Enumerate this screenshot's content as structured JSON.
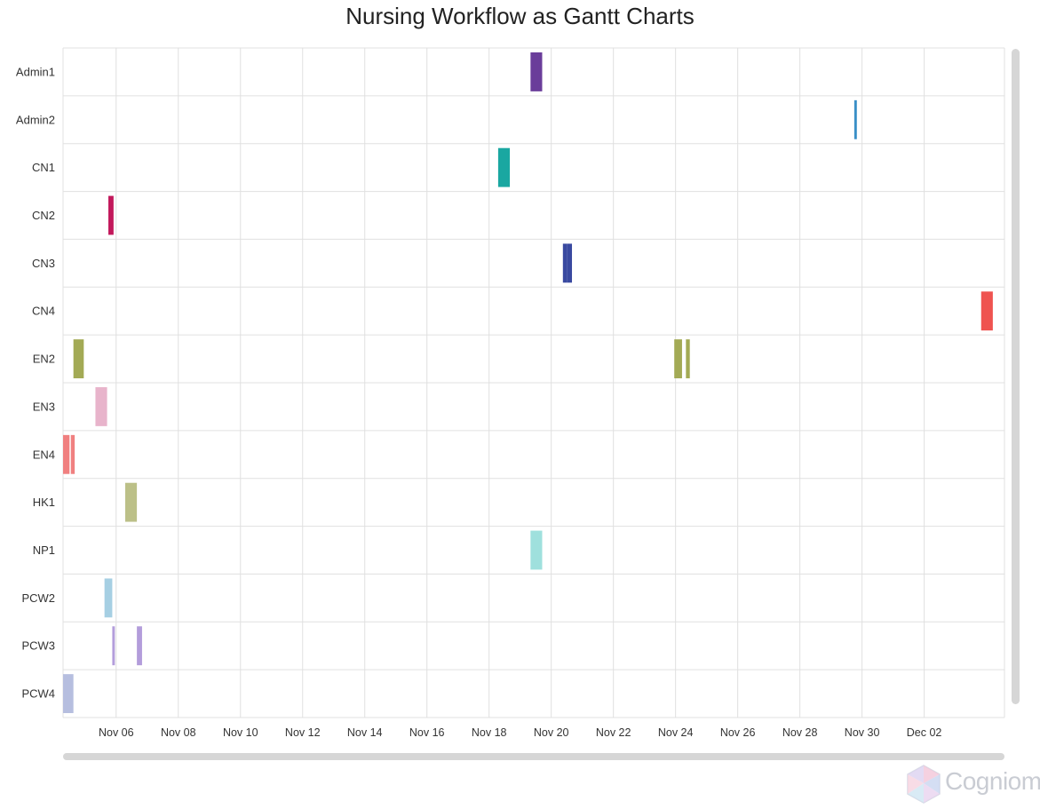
{
  "chart_data": {
    "type": "gantt",
    "title": "Nursing Workflow as Gantt Charts",
    "xlim": [
      "2025-11-04T07:00",
      "2025-12-04T14:00"
    ],
    "x_ticks": [
      "Nov 06",
      "Nov 08",
      "Nov 10",
      "Nov 12",
      "Nov 14",
      "Nov 16",
      "Nov 18",
      "Nov 20",
      "Nov 22",
      "Nov 24",
      "Nov 26",
      "Nov 28",
      "Nov 30",
      "Dec 02"
    ],
    "grid": true,
    "legend": "none",
    "rows": [
      {
        "name": "Admin1",
        "color": "#6a3d9a",
        "tasks": [
          {
            "start": "2025-11-19T08:00",
            "end": "2025-11-19T17:00"
          }
        ]
      },
      {
        "name": "Admin2",
        "color": "#3a8fc7",
        "tasks": [
          {
            "start": "2025-11-29T18:00",
            "end": "2025-11-29T20:00"
          }
        ]
      },
      {
        "name": "CN1",
        "color": "#1aa7a1",
        "tasks": [
          {
            "start": "2025-11-18T07:00",
            "end": "2025-11-18T16:00"
          }
        ]
      },
      {
        "name": "CN2",
        "color": "#c2185b",
        "tasks": [
          {
            "start": "2025-11-05T18:00",
            "end": "2025-11-05T22:00"
          }
        ]
      },
      {
        "name": "CN3",
        "color": "#3949a0",
        "tasks": [
          {
            "start": "2025-11-20T09:00",
            "end": "2025-11-20T12:00"
          },
          {
            "start": "2025-11-20T12:00",
            "end": "2025-11-20T16:00"
          }
        ]
      },
      {
        "name": "CN4",
        "color": "#ef5350",
        "tasks": [
          {
            "start": "2025-12-03T20:00",
            "end": "2025-12-04T05:00"
          }
        ]
      },
      {
        "name": "EN2",
        "color": "#a3aa55",
        "tasks": [
          {
            "start": "2025-11-04T15:00",
            "end": "2025-11-04T23:00"
          },
          {
            "start": "2025-11-23T23:00",
            "end": "2025-11-24T05:00"
          },
          {
            "start": "2025-11-24T08:00",
            "end": "2025-11-24T11:00"
          }
        ]
      },
      {
        "name": "EN3",
        "color": "#e8b4cb",
        "tasks": [
          {
            "start": "2025-11-05T08:00",
            "end": "2025-11-05T17:00"
          }
        ]
      },
      {
        "name": "EN4",
        "color": "#f08080",
        "tasks": [
          {
            "start": "2025-11-04T07:00",
            "end": "2025-11-04T12:00"
          },
          {
            "start": "2025-11-04T13:00",
            "end": "2025-11-04T16:00"
          }
        ]
      },
      {
        "name": "HK1",
        "color": "#bcc088",
        "tasks": [
          {
            "start": "2025-11-06T07:00",
            "end": "2025-11-06T16:00"
          }
        ]
      },
      {
        "name": "NP1",
        "color": "#9fe0dd",
        "tasks": [
          {
            "start": "2025-11-19T08:00",
            "end": "2025-11-19T17:00"
          }
        ]
      },
      {
        "name": "PCW2",
        "color": "#a6cfe3",
        "tasks": [
          {
            "start": "2025-11-05T15:00",
            "end": "2025-11-05T21:00"
          }
        ]
      },
      {
        "name": "PCW3",
        "color": "#b39ddb",
        "tasks": [
          {
            "start": "2025-11-05T21:00",
            "end": "2025-11-05T23:00"
          },
          {
            "start": "2025-11-06T16:00",
            "end": "2025-11-06T20:00"
          }
        ]
      },
      {
        "name": "PCW4",
        "color": "#b6bedf",
        "tasks": [
          {
            "start": "2025-11-04T07:00",
            "end": "2025-11-04T15:00"
          }
        ]
      }
    ]
  },
  "branding": {
    "logo_text": "Cogniom",
    "logo_color": "#c9ccd3"
  }
}
